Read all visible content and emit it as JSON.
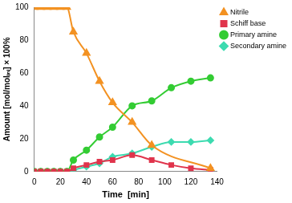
{
  "chart_data": {
    "type": "line",
    "x_label": "Time  [min]",
    "y_label": "Amount [mol/molᵢₙᵢ] × 100%",
    "xlim": [
      0,
      140
    ],
    "xticks": [
      0,
      20,
      40,
      60,
      80,
      100,
      120,
      140
    ],
    "ylim": [
      0,
      100
    ],
    "yticks": [
      0,
      20,
      40,
      60,
      80,
      100
    ],
    "grid": false,
    "legend": "right",
    "series": [
      {
        "name": "Nitrile",
        "color": "#f39222",
        "marker": "triangle",
        "x": [
          0,
          5,
          10,
          15,
          20,
          25,
          30,
          40,
          50,
          60,
          75,
          90,
          135
        ],
        "values": [
          100,
          100,
          100,
          100,
          100,
          100,
          85,
          72,
          55,
          42,
          30,
          16,
          2
        ]
      },
      {
        "name": "Schiff base",
        "color": "#e0344c",
        "marker": "square",
        "x": [
          0,
          5,
          10,
          15,
          20,
          25,
          30,
          40,
          50,
          60,
          75,
          90,
          105,
          120,
          135
        ],
        "values": [
          0,
          0,
          0,
          0,
          0,
          0,
          2,
          4,
          6,
          7,
          10,
          7,
          4,
          2,
          1
        ]
      },
      {
        "name": "Primary amine",
        "color": "#33cc33",
        "marker": "circle",
        "x": [
          0,
          5,
          10,
          15,
          20,
          25,
          30,
          40,
          50,
          60,
          75,
          90,
          105,
          120,
          135
        ],
        "values": [
          0,
          0,
          0,
          0,
          0,
          0,
          7,
          13,
          21,
          27,
          40,
          43,
          51,
          55,
          57
        ]
      },
      {
        "name": "Secondary amine",
        "color": "#3ddbb0",
        "marker": "diamond",
        "x": [
          0,
          5,
          10,
          15,
          20,
          25,
          30,
          40,
          50,
          60,
          75,
          90,
          105,
          120,
          135
        ],
        "values": [
          0,
          0,
          0,
          0,
          0,
          0,
          1,
          3,
          5,
          9,
          11,
          15,
          18,
          18,
          19
        ]
      }
    ]
  }
}
